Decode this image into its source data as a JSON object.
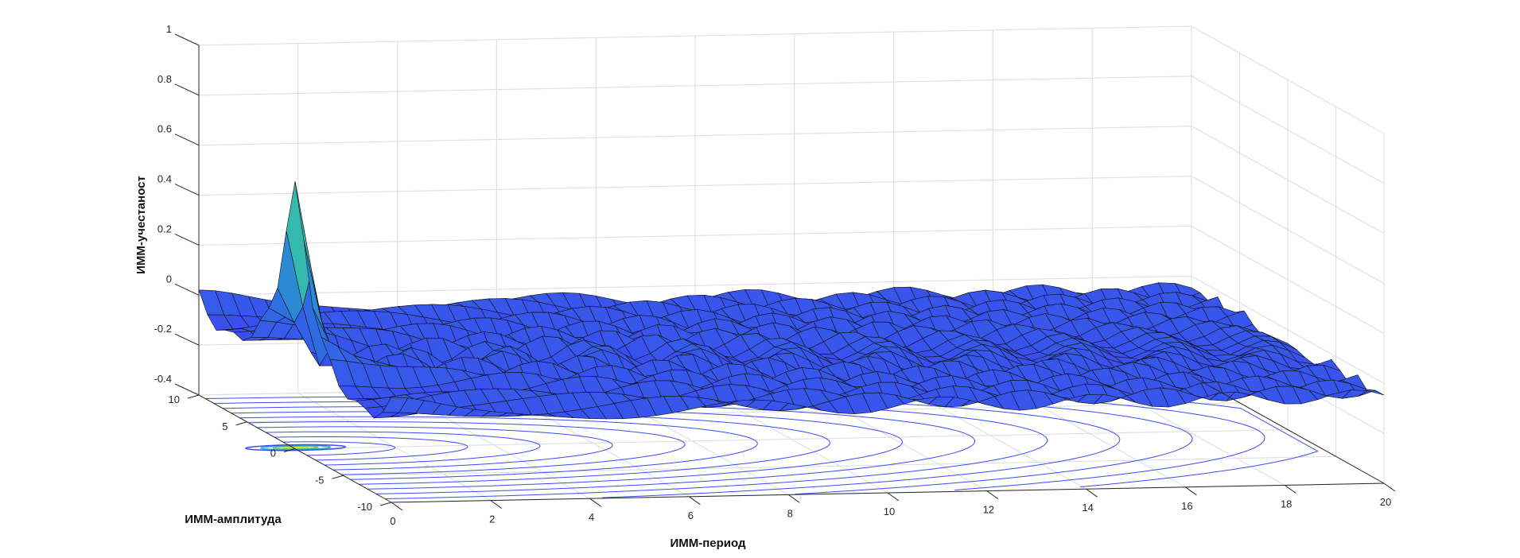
{
  "chart_data": {
    "type": "surface3d",
    "title": "",
    "xlabel": "ИММ-период",
    "ylabel": "ИММ-амплитуда",
    "zlabel": "ИММ-учестаност",
    "x_ticks": [
      "0",
      "2",
      "4",
      "6",
      "8",
      "10",
      "12",
      "14",
      "16",
      "18",
      "20"
    ],
    "y_ticks": [
      "-10",
      "-5",
      "0",
      "5",
      "10"
    ],
    "z_ticks": [
      "-0.4",
      "-0.2",
      "0",
      "0.2",
      "0.4",
      "0.6",
      "0.8",
      "1"
    ],
    "xlim": [
      0,
      20
    ],
    "ylim": [
      -10,
      10
    ],
    "zlim": [
      -0.4,
      1
    ],
    "grid": true,
    "colormap": "parula",
    "surface": {
      "description_values": {
        "peak": {
          "x": 0,
          "y": 0,
          "z": 0.78
        },
        "baseline_z": -0.05,
        "trough_min_z": -0.18,
        "ripple_period_x": 1.9,
        "ripple_amplitude_z": 0.05
      },
      "face_color": "#3b4cf0",
      "edge_color": "#111111"
    },
    "contour": {
      "levels_count": 14,
      "line_color": "#3b4cf0",
      "center": {
        "x": 0,
        "y": 0
      }
    }
  }
}
